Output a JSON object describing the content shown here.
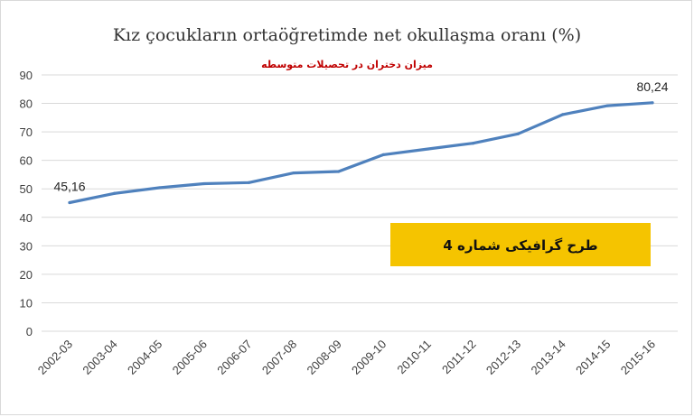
{
  "chart_data": {
    "type": "line",
    "title": "Kız çocukların ortaöğretimde net okullaşma oranı (%)",
    "subtitle": "میزان دختران در تحصیلات متوسطه",
    "categories": [
      "2002-03",
      "2003-04",
      "2004-05",
      "2005-06",
      "2006-07",
      "2007-08",
      "2008-09",
      "2009-10",
      "2010-11",
      "2011-12",
      "2012-13",
      "2013-14",
      "2014-15",
      "2015-16"
    ],
    "series": [
      {
        "values": [
          45.16,
          48.4,
          50.4,
          51.8,
          52.2,
          55.6,
          56.1,
          62.0,
          64.0,
          66.0,
          69.3,
          76.1,
          79.2,
          80.24
        ]
      }
    ],
    "data_labels": [
      {
        "index": 0,
        "text": "45,16"
      },
      {
        "index": 13,
        "text": "80,24"
      }
    ],
    "ylim": [
      0,
      90
    ],
    "yticks": [
      0,
      10,
      20,
      30,
      40,
      50,
      60,
      70,
      80,
      90
    ],
    "grid": true,
    "colors": {
      "line": "#4f81bd",
      "grid": "#d9d9d9",
      "box_fill": "#f5c400"
    },
    "annotation_box": {
      "text": "طرح گرافیکی شماره 4"
    }
  }
}
